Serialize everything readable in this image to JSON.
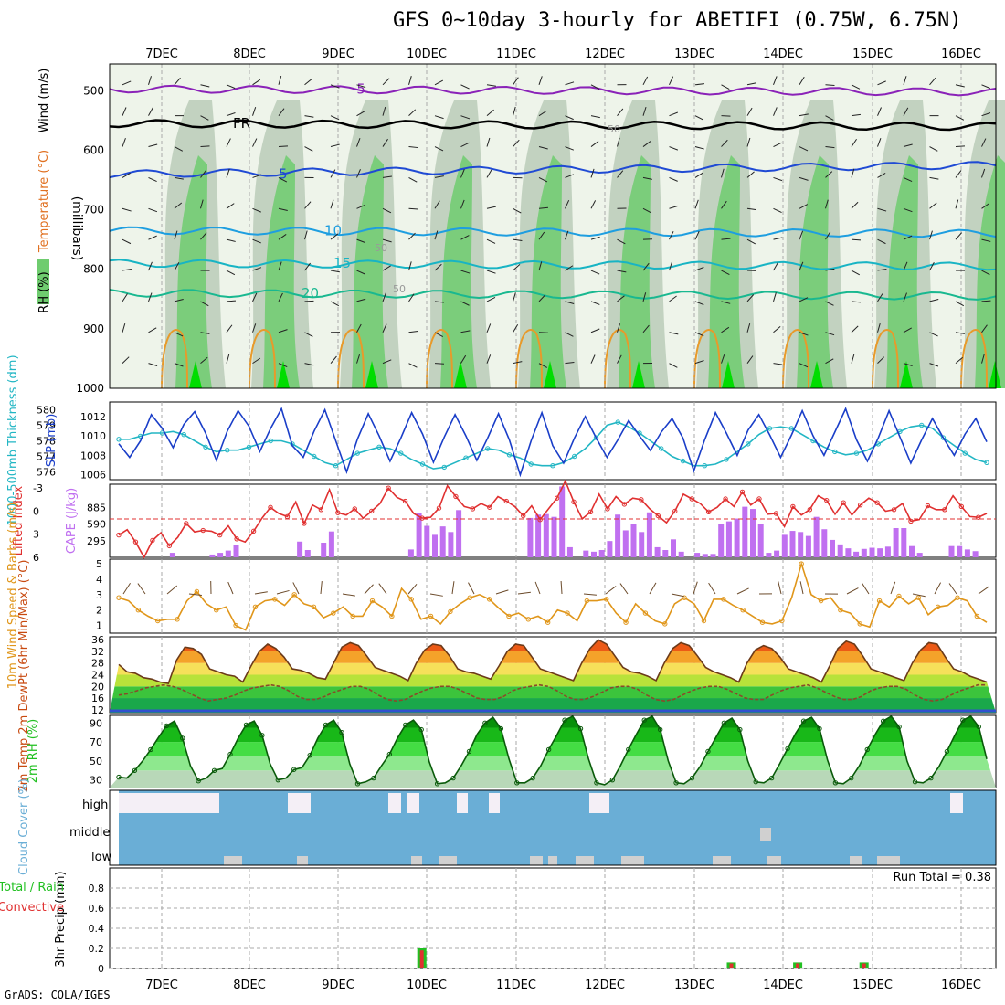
{
  "title": "GFS 0~10day 3-hourly for ABETIFI (0.75W, 6.75N)",
  "footer": "GrADS: COLA/IGES",
  "colors": {
    "grid": "#aaaaaa",
    "sea": "#6aaed6",
    "high_cloud_white": "#f4eff6",
    "low_cloud_gray": "#d0d0d0",
    "slp": "#1a3ec8",
    "thickness": "#22b6c4",
    "li": "#e03030",
    "cape": "#c070f0",
    "wind": "#e0961a",
    "rh_green": "#22c022",
    "precip_total": "#22c022",
    "precip_conv": "#e03030"
  },
  "chart_data": [
    {
      "type": "heatmap",
      "name": "cross-section",
      "ylabel": "(millibars)",
      "side_labels": [
        "RH (%)",
        "Temperature (°C)",
        "Wind (m/s)"
      ],
      "x_tick_labels": [
        "7DEC",
        "8DEC",
        "9DEC",
        "10DEC",
        "11DEC",
        "12DEC",
        "13DEC",
        "14DEC",
        "15DEC",
        "16DEC"
      ],
      "y_ticks": [
        500,
        600,
        700,
        800,
        900,
        1000
      ],
      "ylim": [
        455,
        1000
      ],
      "isotherm_labels": [
        "-5",
        "FR",
        "5",
        "10",
        "15",
        "20"
      ],
      "rh_contour_labels": [
        "50",
        "50",
        "50"
      ]
    },
    {
      "type": "line",
      "name": "thickness-slp",
      "ylabel_left": "1000-500mb Thickness (dm)",
      "ylabel_right": "SLP (mb)",
      "y_ticks_left": [
        576,
        577,
        578,
        579,
        580
      ],
      "y_ticks_right": [
        1006,
        1008,
        1010,
        1012
      ],
      "series": [
        {
          "name": "SLP",
          "axis": "right",
          "values": [
            1009.2,
            1007.8,
            1009.5,
            1012.2,
            1010.8,
            1008.8,
            1011.2,
            1012.5,
            1010.3,
            1007.5,
            1010.5,
            1012.6,
            1011.0,
            1008.4,
            1010.8,
            1012.8,
            1009.0,
            1007.8,
            1010.5,
            1012.7,
            1009.5,
            1006.3,
            1009.7,
            1012.3,
            1010.0,
            1007.4,
            1009.8,
            1012.4,
            1010.2,
            1007.3,
            1009.9,
            1012.2,
            1010.0,
            1007.5,
            1009.8,
            1012.3,
            1009.6,
            1006.0,
            1009.5,
            1012.4,
            1009.0,
            1007.2,
            1009.8,
            1012.0,
            1009.8,
            1007.8,
            1009.6,
            1011.6,
            1010.0,
            1008.5,
            1010.4,
            1011.8,
            1009.8,
            1006.4,
            1009.6,
            1012.4,
            1010.3,
            1008.0,
            1010.6,
            1012.2,
            1010.1,
            1007.8,
            1010.1,
            1012.6,
            1010.0,
            1008.0,
            1010.4,
            1012.8,
            1009.6,
            1007.4,
            1009.8,
            1012.6,
            1009.9,
            1007.2,
            1009.6,
            1011.8,
            1009.8,
            1008.0,
            1010.2,
            1011.8,
            1009.4
          ]
        },
        {
          "name": "Thickness",
          "axis": "left",
          "values": [
            578.1,
            578.1,
            578.3,
            578.5,
            578.5,
            578.6,
            578.4,
            578.0,
            577.6,
            577.3,
            577.4,
            577.4,
            577.6,
            577.8,
            578.0,
            578.0,
            577.8,
            577.4,
            577.0,
            576.6,
            576.4,
            576.8,
            577.2,
            577.4,
            577.6,
            577.5,
            577.2,
            576.8,
            576.5,
            576.2,
            576.3,
            576.6,
            576.9,
            577.2,
            577.5,
            577.4,
            577.1,
            576.9,
            576.5,
            576.4,
            576.4,
            576.6,
            577.0,
            577.5,
            578.2,
            579.0,
            579.2,
            578.9,
            578.5,
            578.0,
            577.5,
            577.0,
            576.7,
            576.4,
            576.4,
            576.5,
            576.8,
            577.3,
            577.8,
            578.4,
            578.8,
            578.9,
            578.8,
            578.4,
            578.0,
            577.6,
            577.3,
            577.1,
            577.2,
            577.4,
            577.8,
            578.2,
            578.6,
            578.9,
            579.0,
            578.8,
            578.2,
            577.7,
            577.2,
            576.8,
            576.6
          ]
        }
      ]
    },
    {
      "type": "bar",
      "name": "lifted-index-cape",
      "ylabel_left": "Lifted Index",
      "ylabel_right": "CAPE (J/kg)",
      "y_ticks_left": [
        -3,
        0,
        3,
        6
      ],
      "y_ticks_right": [
        295,
        590,
        885
      ],
      "series": [
        {
          "name": "CAPE",
          "values": [
            0,
            0,
            0,
            0,
            0,
            0,
            0,
            80,
            0,
            0,
            0,
            0,
            50,
            80,
            120,
            220,
            0,
            0,
            0,
            0,
            0,
            0,
            0,
            280,
            130,
            0,
            260,
            460,
            0,
            0,
            0,
            0,
            0,
            0,
            0,
            0,
            0,
            140,
            780,
            560,
            400,
            550,
            450,
            840,
            0,
            0,
            0,
            0,
            0,
            0,
            0,
            0,
            700,
            760,
            770,
            720,
            1260,
            180,
            0,
            120,
            100,
            130,
            290,
            760,
            480,
            590,
            450,
            800,
            180,
            130,
            320,
            100,
            0,
            80,
            60,
            60,
            600,
            640,
            690,
            900,
            860,
            600,
            80,
            120,
            400,
            470,
            450,
            380,
            720,
            500,
            310,
            230,
            160,
            100,
            150,
            170,
            160,
            190,
            520,
            520,
            200,
            80,
            0,
            0,
            0,
            200,
            200,
            140,
            110,
            0,
            0,
            0,
            0,
            0,
            0,
            0,
            0,
            0,
            0,
            0,
            0,
            0,
            0,
            0,
            0,
            0,
            0,
            0,
            0,
            0,
            0,
            0,
            0,
            0,
            0,
            0,
            0,
            0,
            0,
            0,
            0,
            0,
            0,
            0,
            0,
            0,
            0,
            0,
            0,
            0,
            0,
            0,
            0,
            0,
            0,
            0,
            0,
            0,
            0,
            0,
            0,
            0,
            0,
            0
          ]
        },
        {
          "name": "LI",
          "values": [
            3.1,
            2.4,
            4.0,
            6.0,
            3.8,
            2.8,
            4.5,
            3.4,
            1.6,
            2.7,
            2.5,
            2.6,
            3.1,
            1.9,
            3.6,
            4.0,
            2.6,
            0.9,
            -0.5,
            0.3,
            0.7,
            -1.2,
            1.6,
            -0.8,
            -0.2,
            -2.8,
            0.2,
            0.5,
            -0.3,
            0.9,
            0.0,
            -1.0,
            -3.0,
            -1.8,
            -1.3,
            0.3,
            0.9,
            0.8,
            -0.4,
            -3.3,
            -1.9,
            -0.6,
            -0.3,
            -1.0,
            -0.5,
            -1.9,
            -1.3,
            -0.6,
            0.6,
            -0.7,
            1.1,
            -0.3,
            -1.7,
            -3.9,
            -1.2,
            1.0,
            0.1,
            -2.2,
            -0.3,
            -1.9,
            -0.9,
            -1.7,
            -1.5,
            -0.3,
            0.6,
            1.5,
            0.0,
            -2.2,
            -1.6,
            -1.0,
            0.1,
            -0.5,
            -1.6,
            -0.6,
            -2.5,
            -0.8,
            -1.6,
            0.4,
            0.3,
            2.0,
            -0.6,
            0.5,
            -0.2,
            -2.0,
            -1.4,
            0.4,
            -1.1,
            0.5,
            -0.8,
            -1.7,
            -1.1,
            0.0,
            -0.2,
            -1.0,
            1.3,
            1.1,
            -0.7,
            -0.2,
            -0.2,
            -2.0,
            -0.6,
            0.7,
            0.8,
            0.3
          ]
        }
      ]
    },
    {
      "type": "line",
      "name": "10m-wind",
      "ylabel": "10m Wind Speed & Barbs (m/s)",
      "y_ticks": [
        1,
        2,
        3,
        4,
        5
      ],
      "ylim": [
        0.5,
        5.3
      ],
      "series": [
        {
          "name": "Speed",
          "values": [
            2.8,
            2.6,
            2.0,
            1.6,
            1.3,
            1.4,
            1.4,
            2.6,
            3.2,
            2.4,
            2.0,
            2.2,
            1.0,
            0.7,
            2.2,
            2.6,
            2.7,
            2.3,
            3.0,
            2.4,
            2.2,
            1.5,
            1.8,
            2.2,
            1.6,
            1.6,
            2.6,
            2.2,
            1.6,
            3.4,
            2.7,
            1.4,
            1.6,
            1.1,
            1.9,
            2.4,
            2.8,
            3.0,
            2.7,
            2.1,
            1.6,
            1.8,
            1.4,
            1.6,
            1.2,
            2.0,
            1.8,
            1.3,
            2.6,
            2.6,
            2.7,
            1.8,
            1.2,
            2.4,
            1.8,
            1.3,
            1.1,
            2.4,
            2.8,
            2.4,
            1.3,
            2.7,
            2.7,
            2.3,
            2.0,
            1.6,
            1.2,
            1.1,
            1.3,
            2.8,
            5.0,
            3.0,
            2.6,
            2.8,
            2.0,
            1.8,
            1.1,
            0.9,
            2.6,
            2.2,
            2.9,
            2.4,
            2.8,
            1.7,
            2.2,
            2.3,
            2.8,
            2.6,
            1.6,
            1.2
          ]
        }
      ]
    },
    {
      "type": "area",
      "name": "2m-temp",
      "ylabel": "2m Temp 2m DewPt (6hr Min/Max) (°C)",
      "y_ticks": [
        12,
        16,
        20,
        24,
        28,
        32,
        36
      ],
      "ylim": [
        11,
        37
      ],
      "series": [
        {
          "name": "Temp",
          "values": [
            27.5,
            25,
            24.5,
            23,
            22.5,
            21.5,
            21,
            29,
            33.5,
            33,
            31,
            26,
            25,
            24,
            23.5,
            21.5,
            27,
            32,
            34.5,
            33,
            30,
            26,
            25.5,
            24.5,
            23,
            22.5,
            28,
            33.5,
            35,
            34,
            30.5,
            26.5,
            25.5,
            24.5,
            23.5,
            22,
            28,
            32.5,
            34.5,
            34,
            30.5,
            26,
            25,
            24.5,
            23.5,
            22.5,
            27,
            32,
            34.5,
            34,
            30,
            26,
            25,
            24,
            23,
            22,
            28,
            33,
            36,
            34.5,
            30.5,
            26.5,
            25,
            24.5,
            23.5,
            22,
            28,
            33,
            35,
            34,
            30.5,
            26.5,
            25,
            24,
            23,
            21.5,
            28,
            32.5,
            34,
            33,
            30,
            26,
            25,
            24,
            23,
            21.5,
            27,
            33,
            35.5,
            34.5,
            30.5,
            26,
            25,
            24,
            23,
            22,
            28,
            32.5,
            35,
            34.5,
            30,
            26,
            25,
            23.5,
            22.5,
            21.5
          ]
        },
        {
          "name": "DewPt",
          "values": [
            17,
            17.5,
            18.5,
            19.5,
            20,
            20.5,
            20,
            19,
            17.5,
            16,
            15,
            15.5,
            16,
            17,
            18.5,
            19.5,
            20,
            20.5,
            20,
            18.5,
            16.5,
            15.5,
            15.5,
            16.5,
            18,
            19,
            20,
            20,
            19,
            17,
            15.5,
            15,
            15.5,
            17,
            18.5,
            19.5,
            20,
            20,
            19,
            17.5,
            16,
            15.5,
            15.5,
            16.5,
            18.5,
            19.5,
            20,
            20.5,
            20,
            18.5,
            16.5,
            15.5,
            15.5,
            16.5,
            18,
            19.5,
            20,
            20,
            19,
            17,
            15.5,
            15,
            15.5,
            17,
            18.5,
            19.5,
            20,
            20,
            19,
            17.5,
            16,
            15.5,
            15.5,
            17,
            18.5,
            19.5,
            20,
            20.5,
            19.5,
            18,
            16.5,
            15.5,
            15.5,
            16.5,
            18.5,
            19.5,
            20,
            20,
            19,
            17,
            15.5,
            15,
            15.5,
            17,
            18.5,
            19.5,
            20.5,
            20.5
          ]
        }
      ]
    },
    {
      "type": "area",
      "name": "2m-rh",
      "ylabel": "2m RH (%)",
      "y_ticks": [
        30,
        50,
        70,
        90
      ],
      "ylim": [
        22,
        98
      ],
      "series": [
        {
          "name": "RH",
          "values": [
            33,
            32,
            40,
            50,
            62,
            75,
            87,
            92,
            74,
            45,
            29,
            32,
            40,
            42,
            57,
            74,
            88,
            92,
            77,
            47,
            30,
            32,
            41,
            43,
            56,
            74,
            88,
            93,
            80,
            47,
            26,
            28,
            32,
            45,
            57,
            74,
            88,
            93,
            83,
            49,
            26,
            27,
            32,
            45,
            60,
            78,
            90,
            96,
            84,
            52,
            27,
            27,
            32,
            45,
            62,
            77,
            93,
            97,
            84,
            52,
            27,
            25,
            30,
            45,
            62,
            78,
            93,
            97,
            83,
            50,
            27,
            26,
            32,
            44,
            60,
            75,
            90,
            95,
            83,
            50,
            28,
            27,
            32,
            47,
            63,
            79,
            92,
            96,
            84,
            51,
            27,
            26,
            32,
            45,
            62,
            78,
            92,
            97,
            86,
            50,
            28,
            27,
            32,
            44,
            60,
            77,
            93,
            97,
            86,
            52
          ]
        }
      ]
    },
    {
      "type": "bar",
      "name": "cloud-cover",
      "ylabel": "Cloud Cover (%)",
      "categories_labels": [
        "high",
        "middle",
        "low"
      ]
    },
    {
      "type": "bar",
      "name": "3hr-precip",
      "ylabel": "3hr Precip (mm)",
      "legend": [
        "Total / Rain",
        "Convective"
      ],
      "run_total": "Run Total = 0.38",
      "y_ticks": [
        0,
        0.2,
        0.4,
        0.6,
        0.8
      ],
      "ylim": [
        0,
        1.0
      ],
      "series": [
        {
          "name": "Total",
          "positions": [
            27,
            55,
            61,
            67
          ],
          "values": [
            0.2,
            0.06,
            0.06,
            0.06
          ]
        },
        {
          "name": "Convective",
          "positions": [
            27,
            55,
            61,
            67
          ],
          "values": [
            0.18,
            0.05,
            0.05,
            0.05
          ]
        }
      ]
    }
  ]
}
